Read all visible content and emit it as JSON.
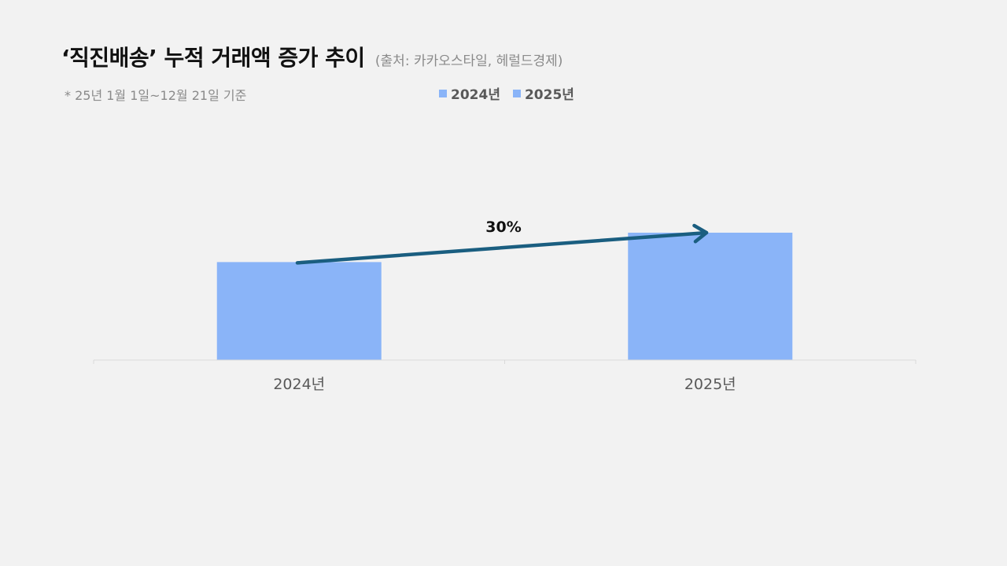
{
  "header": {
    "title": "‘직진배송’ 누적 거래액 증가 추이",
    "source": "(출처: 카카오스타일, 헤럴드경제)",
    "note": "* 25년 1월 1일~12월 21일 기준"
  },
  "colors": {
    "bar": "#8ab4f8",
    "arrow": "#1a5e80",
    "axis": "#d9d9d9",
    "background": "#f2f2f2"
  },
  "chart_data": {
    "type": "bar",
    "categories": [
      "2024년",
      "2025년"
    ],
    "series": [
      {
        "name": "2024년",
        "values": [
          100,
          null
        ]
      },
      {
        "name": "2025년",
        "values": [
          null,
          130
        ]
      }
    ],
    "legend": [
      "2024년",
      "2025년"
    ],
    "legend_position": "top-center",
    "annotation": {
      "text": "30%",
      "type": "growth-arrow",
      "from": "2024년",
      "to": "2025년"
    },
    "ylim": [
      0,
      130
    ],
    "grid": false,
    "y_axis_visible": false
  }
}
